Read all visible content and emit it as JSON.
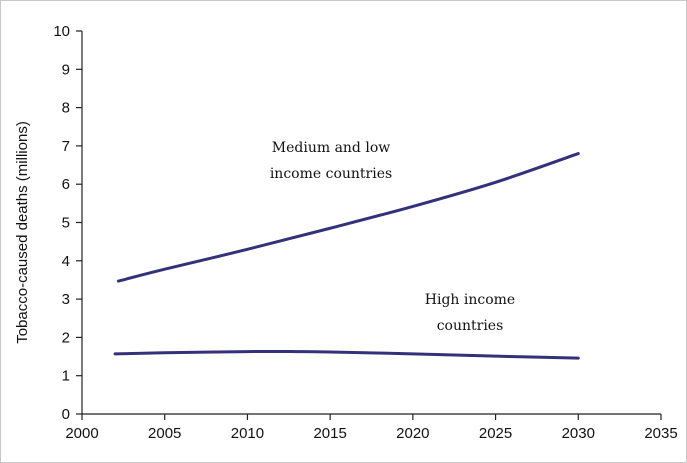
{
  "chart_data": {
    "type": "line",
    "title": "",
    "xlabel": "",
    "ylabel": "Tobacco-caused deaths (millions)",
    "xlim": [
      2000,
      2035
    ],
    "ylim": [
      0,
      10
    ],
    "xticks": [
      2000,
      2005,
      2010,
      2015,
      2020,
      2025,
      2030,
      2035
    ],
    "yticks": [
      0,
      1,
      2,
      3,
      4,
      5,
      6,
      7,
      8,
      9,
      10
    ],
    "grid": false,
    "legend": "none",
    "series": [
      {
        "name": "Medium and low income countries",
        "label_lines": [
          "Medium and low",
          "income countries"
        ],
        "color": "#33317a",
        "x": [
          2002.2,
          2005,
          2010,
          2015,
          2020,
          2025,
          2030
        ],
        "y": [
          3.47,
          3.78,
          4.3,
          4.85,
          5.42,
          6.05,
          6.8
        ]
      },
      {
        "name": "High income countries",
        "label_lines": [
          "High income",
          "countries"
        ],
        "color": "#33317a",
        "x": [
          2002,
          2005,
          2010,
          2013,
          2015,
          2020,
          2025,
          2030
        ],
        "y": [
          1.57,
          1.6,
          1.63,
          1.63,
          1.62,
          1.57,
          1.51,
          1.46
        ]
      }
    ]
  }
}
